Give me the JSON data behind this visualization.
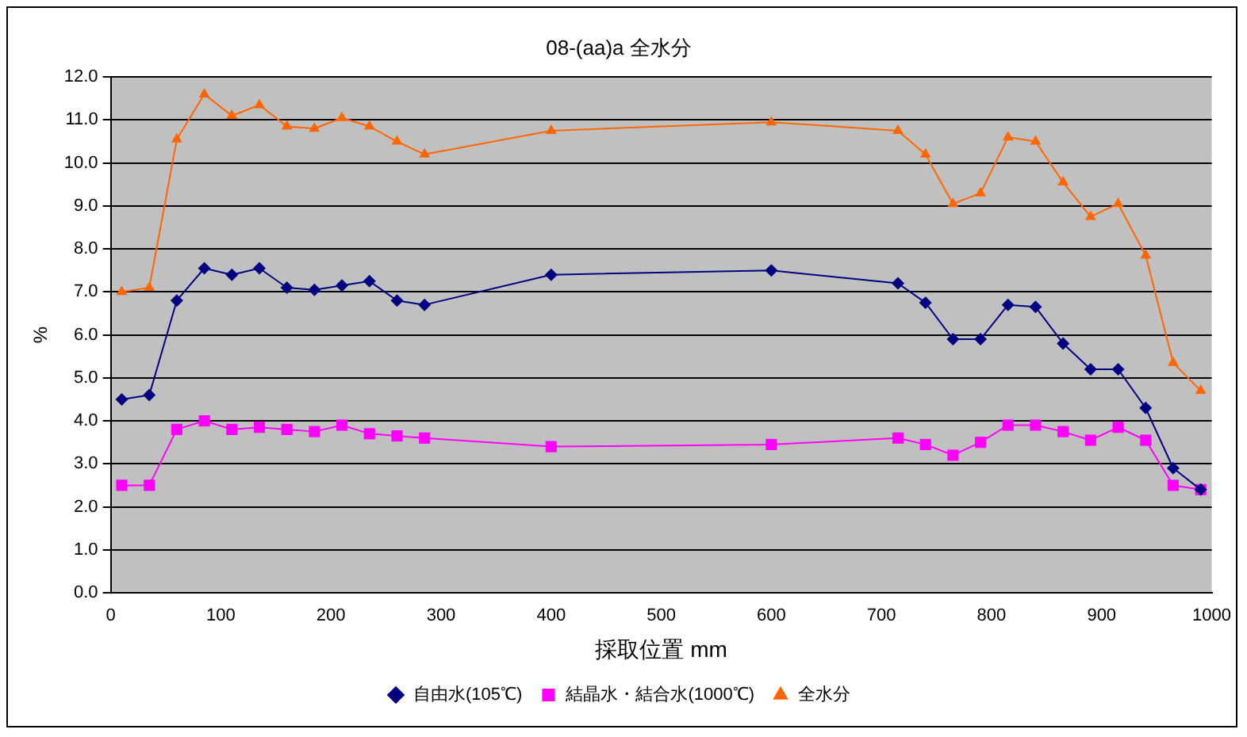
{
  "chart_data": {
    "type": "line",
    "title": "08-(aa)a 全水分",
    "xlabel": "採取位置 mm",
    "ylabel": "%",
    "x": [
      10,
      35,
      60,
      85,
      110,
      135,
      160,
      185,
      210,
      235,
      260,
      285,
      400,
      600,
      715,
      740,
      765,
      790,
      815,
      840,
      865,
      890,
      915,
      940,
      965,
      990
    ],
    "xlim": [
      0,
      1000
    ],
    "xticks": [
      0,
      100,
      200,
      300,
      400,
      500,
      600,
      700,
      800,
      900,
      1000
    ],
    "ylim": [
      0,
      12
    ],
    "yticks": [
      {
        "value": 0,
        "label": "0.0"
      },
      {
        "value": 1,
        "label": "1.0"
      },
      {
        "value": 2,
        "label": "2.0"
      },
      {
        "value": 3,
        "label": "3.0"
      },
      {
        "value": 4,
        "label": "4.0"
      },
      {
        "value": 5,
        "label": "5.0"
      },
      {
        "value": 6,
        "label": "6.0"
      },
      {
        "value": 7,
        "label": "7.0"
      },
      {
        "value": 8,
        "label": "8.0"
      },
      {
        "value": 9,
        "label": "9.0"
      },
      {
        "value": 10,
        "label": "10.0"
      },
      {
        "value": 11,
        "label": "11.0"
      },
      {
        "value": 12,
        "label": "12.0"
      }
    ],
    "grid": "y",
    "legend": "bottom",
    "line_style": "solid",
    "series": [
      {
        "name": "自由水(105℃)",
        "color": "#000080",
        "marker": "diamond",
        "values": [
          4.5,
          4.6,
          6.8,
          7.55,
          7.4,
          7.55,
          7.1,
          7.05,
          7.15,
          7.25,
          6.8,
          6.7,
          7.4,
          7.5,
          7.2,
          6.75,
          5.9,
          5.9,
          6.7,
          6.65,
          5.8,
          5.2,
          5.2,
          4.3,
          2.9,
          2.4
        ]
      },
      {
        "name": "結晶水・結合水(1000℃)",
        "color": "#ff00ff",
        "marker": "square",
        "values": [
          2.5,
          2.5,
          3.8,
          4.0,
          3.8,
          3.85,
          3.8,
          3.75,
          3.9,
          3.7,
          3.65,
          3.6,
          3.4,
          3.45,
          3.6,
          3.45,
          3.2,
          3.5,
          3.9,
          3.9,
          3.75,
          3.55,
          3.85,
          3.55,
          2.5,
          2.4
        ]
      },
      {
        "name": "全水分",
        "color": "#ff6600",
        "marker": "triangle",
        "values": [
          7.0,
          7.1,
          10.55,
          11.6,
          11.1,
          11.35,
          10.85,
          10.8,
          11.05,
          10.85,
          10.5,
          10.2,
          10.75,
          10.95,
          10.75,
          10.2,
          9.05,
          9.3,
          10.6,
          10.5,
          9.55,
          8.75,
          9.05,
          7.85,
          5.35,
          4.7
        ]
      }
    ]
  }
}
